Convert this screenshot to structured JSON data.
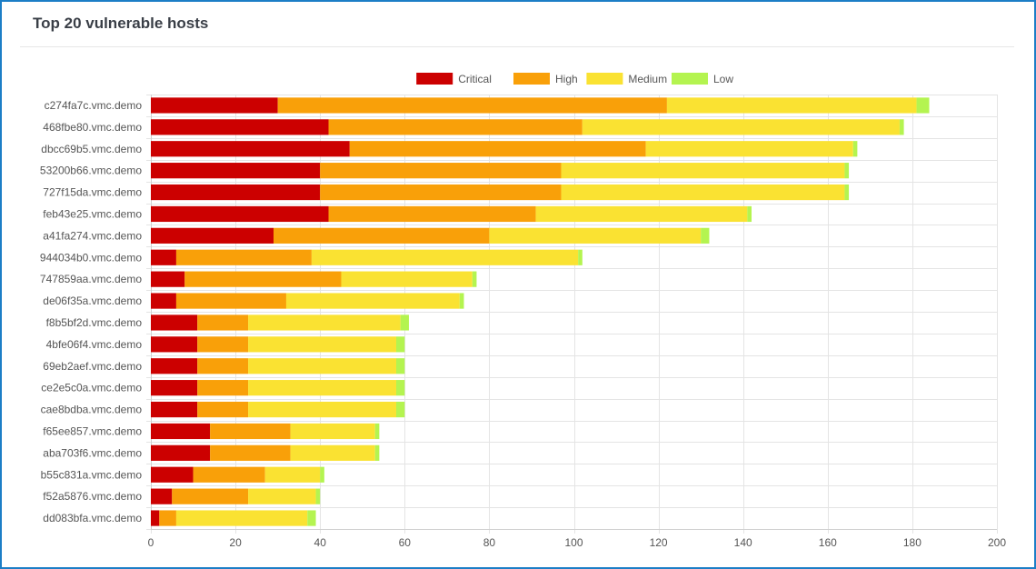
{
  "panel": {
    "title": "Top 20 vulnerable hosts"
  },
  "chart_data": {
    "type": "bar",
    "orientation": "horizontal",
    "stacked": true,
    "categories": [
      "c274fa7c.vmc.demo",
      "468fbe80.vmc.demo",
      "dbcc69b5.vmc.demo",
      "53200b66.vmc.demo",
      "727f15da.vmc.demo",
      "feb43e25.vmc.demo",
      "a41fa274.vmc.demo",
      "944034b0.vmc.demo",
      "747859aa.vmc.demo",
      "de06f35a.vmc.demo",
      "f8b5bf2d.vmc.demo",
      "4bfe06f4.vmc.demo",
      "69eb2aef.vmc.demo",
      "ce2e5c0a.vmc.demo",
      "cae8bdba.vmc.demo",
      "f65ee857.vmc.demo",
      "aba703f6.vmc.demo",
      "b55c831a.vmc.demo",
      "f52a5876.vmc.demo",
      "dd083bfa.vmc.demo"
    ],
    "series": [
      {
        "name": "Critical",
        "color": "#cc0000",
        "values": [
          30,
          42,
          47,
          40,
          40,
          42,
          29,
          6,
          8,
          6,
          11,
          11,
          11,
          11,
          11,
          14,
          14,
          10,
          5,
          2
        ]
      },
      {
        "name": "High",
        "color": "#f9a009",
        "values": [
          92,
          60,
          70,
          57,
          57,
          49,
          51,
          32,
          37,
          26,
          12,
          12,
          12,
          12,
          12,
          19,
          19,
          17,
          18,
          4
        ]
      },
      {
        "name": "Medium",
        "color": "#fae232",
        "values": [
          59,
          75,
          49,
          67,
          67,
          50,
          50,
          63,
          31,
          41,
          36,
          35,
          35,
          35,
          35,
          20,
          20,
          13,
          16,
          31
        ]
      },
      {
        "name": "Low",
        "color": "#b4f450",
        "values": [
          3,
          1,
          1,
          1,
          1,
          1,
          2,
          1,
          1,
          1,
          2,
          2,
          2,
          2,
          2,
          1,
          1,
          1,
          1,
          2
        ]
      }
    ],
    "xlim": [
      0,
      200
    ],
    "xticks": [
      0,
      20,
      40,
      60,
      80,
      100,
      120,
      140,
      160,
      180,
      200
    ],
    "grid": true,
    "legend": "top-center"
  }
}
